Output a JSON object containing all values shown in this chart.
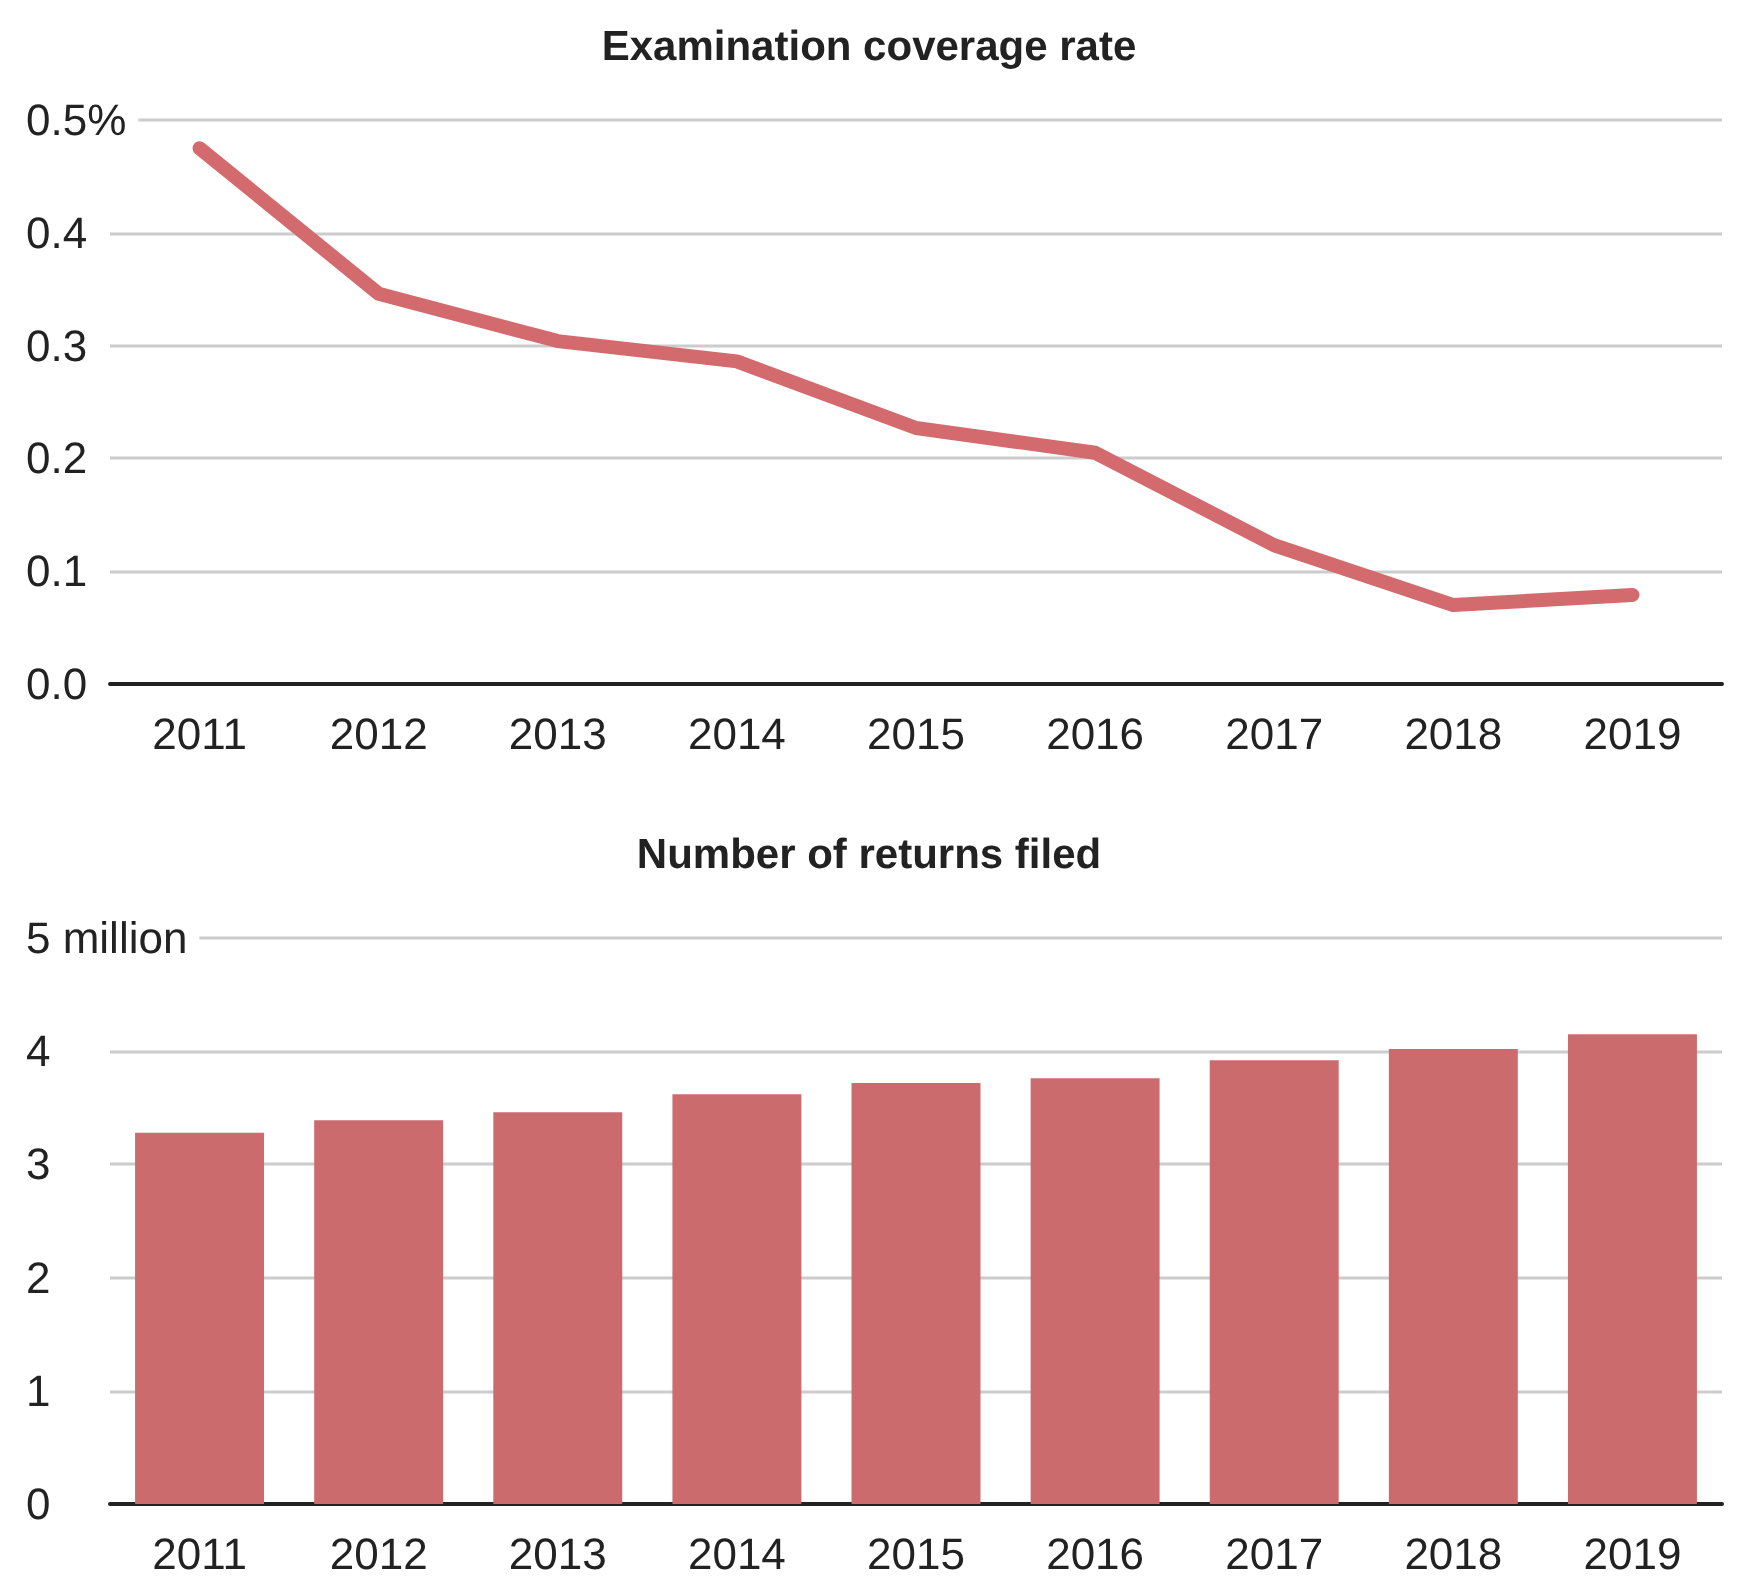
{
  "chart_data": [
    {
      "type": "line",
      "title": "Examination coverage rate",
      "categories": [
        "2011",
        "2012",
        "2013",
        "2014",
        "2015",
        "2016",
        "2017",
        "2018",
        "2019"
      ],
      "series": [
        {
          "color": "#d36b6e",
          "values": [
            0.475,
            0.346,
            0.304,
            0.286,
            0.227,
            0.205,
            0.123,
            0.07,
            0.079
          ]
        }
      ],
      "ylim": [
        0,
        0.5
      ],
      "yticks": [
        {
          "value": 0,
          "label": "0.0"
        },
        0.1,
        0.2,
        0.3,
        0.4,
        {
          "value": 0.5,
          "label": "0.5%"
        }
      ],
      "grid": "y",
      "line_style": "solid"
    },
    {
      "type": "bar",
      "title": "Number of returns filed",
      "categories": [
        "2011",
        "2012",
        "2013",
        "2014",
        "2015",
        "2016",
        "2017",
        "2018",
        "2019"
      ],
      "series": [
        {
          "color": "#cc6b6e",
          "values": [
            3.28,
            3.39,
            3.46,
            3.62,
            3.72,
            3.76,
            3.92,
            4.02,
            4.15
          ]
        }
      ],
      "ylim": [
        0,
        5
      ],
      "yticks": [
        0,
        1,
        2,
        3,
        4,
        {
          "value": 5,
          "label": "5 million"
        }
      ],
      "grid": "y"
    }
  ]
}
